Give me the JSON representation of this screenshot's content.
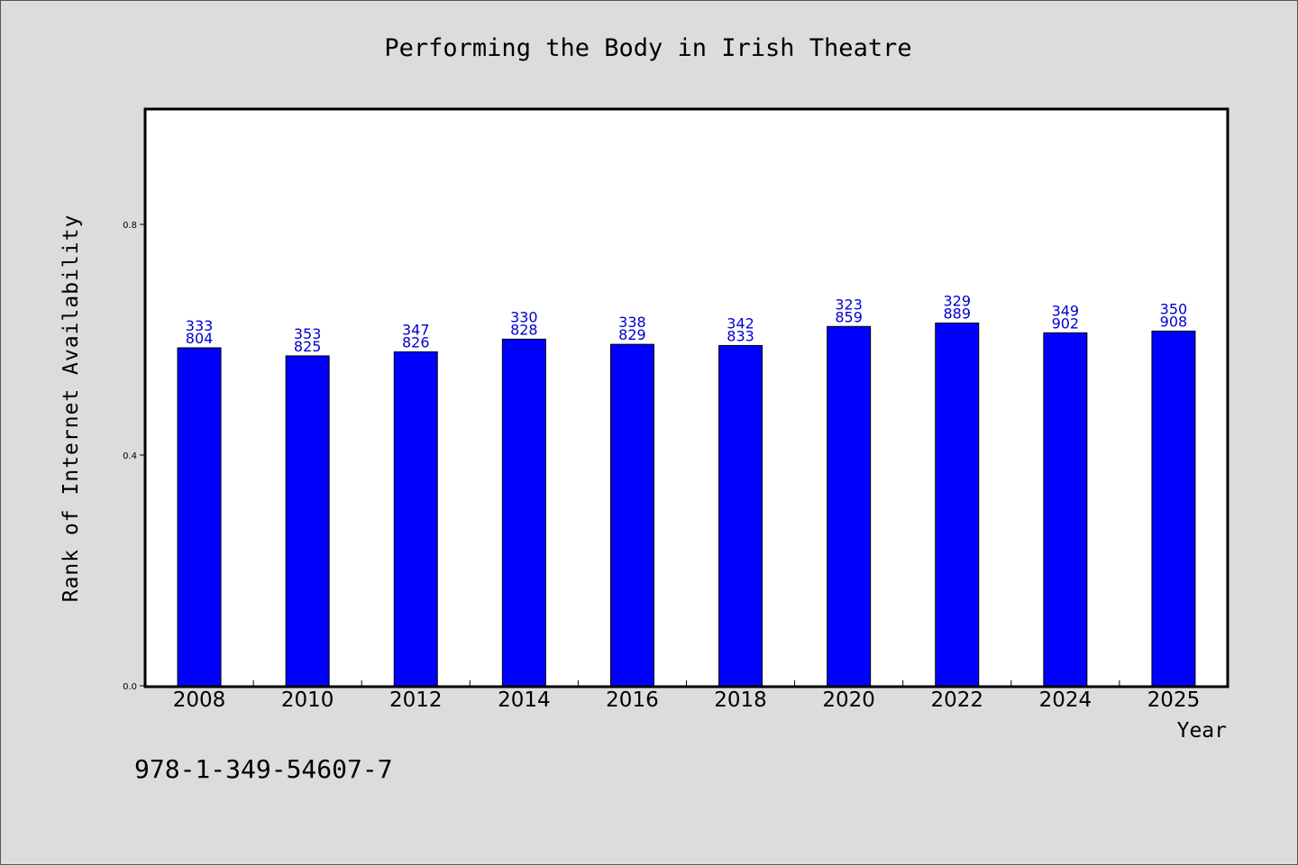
{
  "chart_data": {
    "type": "bar",
    "title": "Performing the Body in Irish Theatre",
    "xlabel": "Year",
    "ylabel": "Rank of Internet Availability",
    "categories": [
      "2008",
      "2010",
      "2012",
      "2014",
      "2016",
      "2018",
      "2020",
      "2022",
      "2024",
      "2025"
    ],
    "values": [
      0.586,
      0.572,
      0.579,
      0.601,
      0.592,
      0.59,
      0.623,
      0.629,
      0.612,
      0.615
    ],
    "bar_labels": [
      [
        "333",
        "804"
      ],
      [
        "353",
        "825"
      ],
      [
        "347",
        "826"
      ],
      [
        "330",
        "828"
      ],
      [
        "338",
        "829"
      ],
      [
        "342",
        "833"
      ],
      [
        "323",
        "859"
      ],
      [
        "329",
        "889"
      ],
      [
        "349",
        "902"
      ],
      [
        "350",
        "908"
      ]
    ],
    "yticks": [
      "0.0",
      "0.4",
      "0.8"
    ],
    "ytick_values": [
      0.0,
      0.4,
      0.8
    ],
    "ylim": [
      0,
      1.0
    ],
    "grid": false,
    "legend": "none",
    "bar_color": "#0000ff",
    "label_color": "#0000cc"
  },
  "footer": {
    "isbn": "978-1-349-54607-7"
  }
}
